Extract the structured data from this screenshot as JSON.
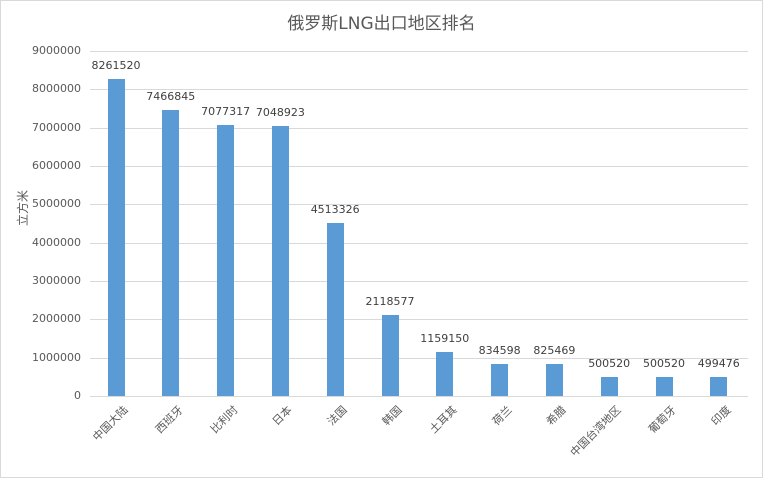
{
  "chart_data": {
    "type": "bar",
    "title": "俄罗斯LNG出口地区排名",
    "xlabel": "",
    "ylabel": "立方米",
    "ylim": [
      0,
      9000000
    ],
    "grid": true,
    "legend": "none",
    "yticks": [
      "0",
      "1000000",
      "2000000",
      "3000000",
      "4000000",
      "5000000",
      "6000000",
      "7000000",
      "8000000",
      "9000000"
    ],
    "categories": [
      "中国大陆",
      "西班牙",
      "比利时",
      "日本",
      "法国",
      "韩国",
      "土耳其",
      "荷兰",
      "希腊",
      "中国台湾地区",
      "葡萄牙",
      "印度"
    ],
    "values": [
      8261520,
      7466845,
      7077317,
      7048923,
      4513326,
      2118577,
      1159150,
      834598,
      825469,
      500520,
      500520,
      499476
    ],
    "value_labels": [
      "8261520",
      "7466845",
      "7077317",
      "7048923",
      "4513326",
      "2118577",
      "1159150",
      "834598",
      "825469",
      "500520",
      "500520",
      "499476"
    ],
    "bar_color": "#5b9bd5"
  }
}
